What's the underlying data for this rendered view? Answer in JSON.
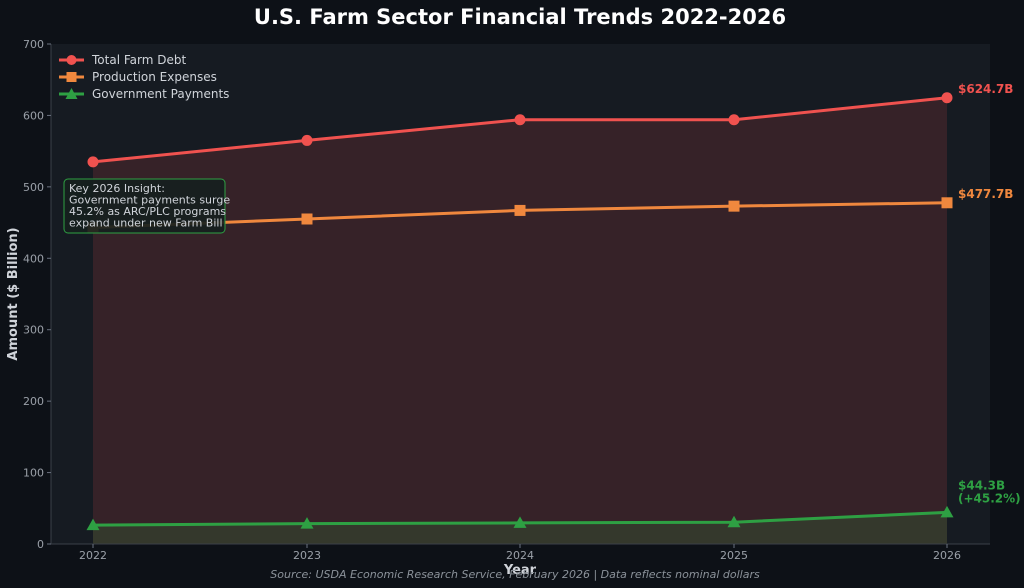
{
  "colors": {
    "background": "#0d1117",
    "plot_background": "#161b22",
    "debt": "#f0524f",
    "expenses": "#f0883e",
    "payments": "#2ea043",
    "annotation_border": "#2ea043"
  },
  "chart_data": {
    "type": "line",
    "title": "U.S. Farm Sector Financial Trends 2022-2026",
    "xlabel": "Year",
    "ylabel": "Amount ($ Billion)",
    "x": [
      2022,
      2023,
      2024,
      2025,
      2026
    ],
    "x_tick_labels": [
      "2022",
      "2023",
      "2024",
      "2025",
      "2026"
    ],
    "ylim": [
      0,
      700
    ],
    "y_ticks": [
      0,
      100,
      200,
      300,
      400,
      500,
      600,
      700
    ],
    "grid": false,
    "legend_position": "top-left",
    "series": [
      {
        "name": "Total Farm Debt",
        "marker": "circle",
        "color_key": "debt",
        "values": [
          535.0,
          565.0,
          594.0,
          594.0,
          624.7
        ],
        "end_label": "$624.7B",
        "fill": true
      },
      {
        "name": "Production Expenses",
        "marker": "square",
        "color_key": "expenses",
        "values": [
          443.0,
          455.0,
          467.0,
          473.0,
          477.7
        ],
        "end_label": "$477.7B",
        "fill": false
      },
      {
        "name": "Government Payments",
        "marker": "triangle",
        "color_key": "payments",
        "values": [
          26.5,
          28.5,
          29.5,
          30.5,
          44.3
        ],
        "end_label": "$44.3B",
        "end_label_2": "(+45.2%)",
        "fill": true
      }
    ],
    "annotation": {
      "lines": [
        "Key 2026 Insight:",
        "Government payments surge",
        "45.2% as ARC/PLC programs",
        "expand under new Farm Bill"
      ]
    },
    "source": "Source: USDA Economic Research Service, February 2026 | Data reflects nominal dollars"
  }
}
